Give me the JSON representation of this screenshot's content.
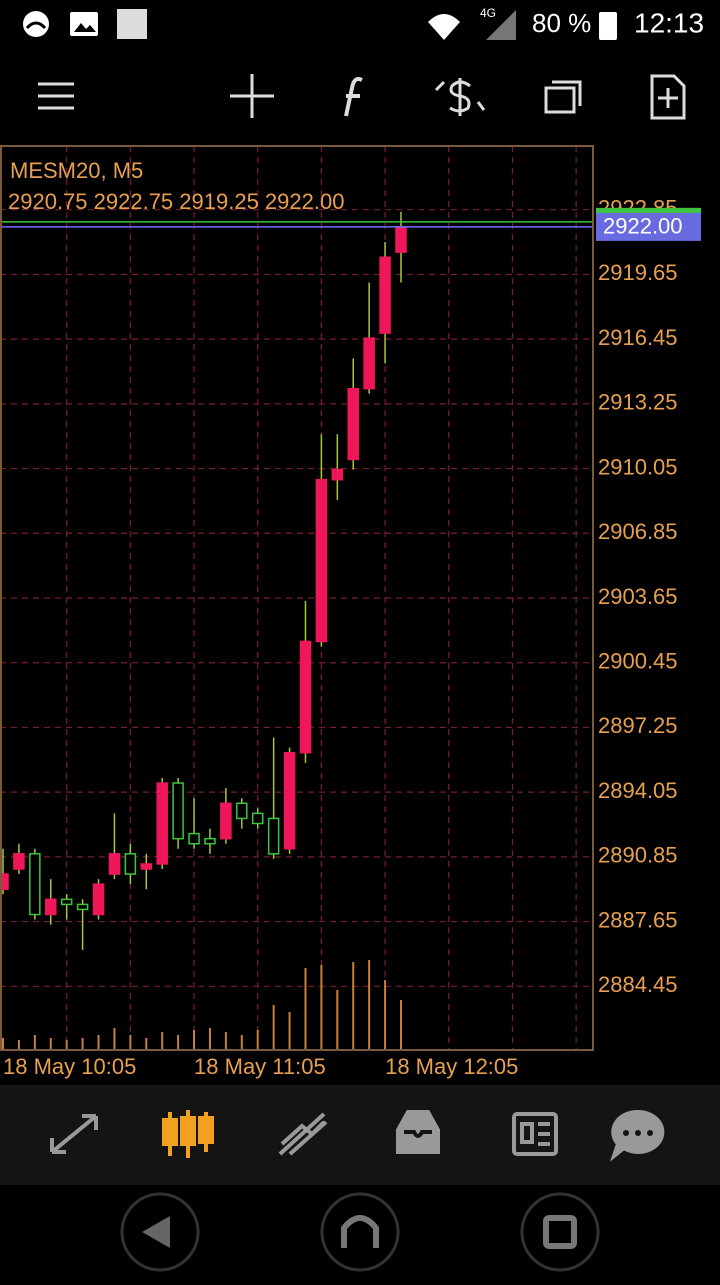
{
  "status_bar": {
    "network": "4G",
    "battery": "80 %",
    "time": "12:13"
  },
  "chart_data": {
    "type": "candlestick",
    "title": "MESM20, M5",
    "subtitle": "2920.75 2922.75 2919.25 2922.00",
    "categories": [
      "18 May 10:05",
      null,
      null,
      null,
      null,
      null,
      null,
      null,
      null,
      null,
      null,
      null,
      "18 May 11:05",
      null,
      null,
      null,
      null,
      null,
      null,
      null,
      null,
      null,
      null,
      null,
      "18 May 12:05",
      null
    ],
    "open": [
      2889.25,
      2890.25,
      2891.0,
      2888.0,
      2888.75,
      2888.5,
      2888.0,
      2890.0,
      2891.0,
      2890.25,
      2890.5,
      2894.5,
      2892.0,
      2891.75,
      2891.75,
      2893.5,
      2893.0,
      2892.75,
      2891.25,
      2896.0,
      2901.5,
      2909.5,
      2910.5,
      2914.0,
      2916.75,
      2920.75
    ],
    "high": [
      2891.25,
      2891.5,
      2891.25,
      2889.75,
      2889.0,
      2888.75,
      2889.75,
      2893.0,
      2891.5,
      2891.0,
      2894.75,
      2894.75,
      2893.75,
      2892.25,
      2894.25,
      2893.75,
      2893.25,
      2896.75,
      2896.25,
      2903.5,
      2911.75,
      2911.75,
      2915.5,
      2919.25,
      2921.25,
      2922.75
    ],
    "low": [
      2889.0,
      2890.0,
      2887.75,
      2887.5,
      2887.75,
      2886.25,
      2887.75,
      2889.75,
      2889.5,
      2889.25,
      2890.25,
      2891.25,
      2891.25,
      2891.0,
      2891.5,
      2892.25,
      2892.25,
      2890.75,
      2891.0,
      2895.5,
      2901.25,
      2908.5,
      2910.0,
      2913.75,
      2915.25,
      2919.25
    ],
    "close": [
      2890.0,
      2891.0,
      2888.0,
      2888.75,
      2888.5,
      2888.25,
      2889.5,
      2891.0,
      2890.0,
      2890.5,
      2894.5,
      2891.75,
      2891.5,
      2891.5,
      2893.5,
      2892.75,
      2892.5,
      2891.0,
      2896.0,
      2901.5,
      2909.5,
      2910.0,
      2914.0,
      2916.5,
      2920.5,
      2922.0
    ],
    "volume": [
      120,
      100,
      150,
      120,
      100,
      120,
      150,
      220,
      150,
      120,
      180,
      150,
      200,
      220,
      180,
      150,
      200,
      450,
      380,
      820,
      850,
      600,
      880,
      900,
      700,
      500
    ],
    "up_color": "#f0165a",
    "down_color": "#3fc43f",
    "wick_color": "#a8c83a",
    "volume_color": "#c8803a",
    "ylim": [
      2881.3,
      2926.0
    ],
    "yticks": [
      2884.45,
      2887.65,
      2890.85,
      2894.05,
      2897.25,
      2900.45,
      2903.65,
      2906.85,
      2910.05,
      2913.25,
      2916.45,
      2919.65,
      2922.85
    ],
    "grid": true,
    "bid": {
      "value": 2922.0,
      "label": "2922.00"
    },
    "ask": 2922.25
  }
}
